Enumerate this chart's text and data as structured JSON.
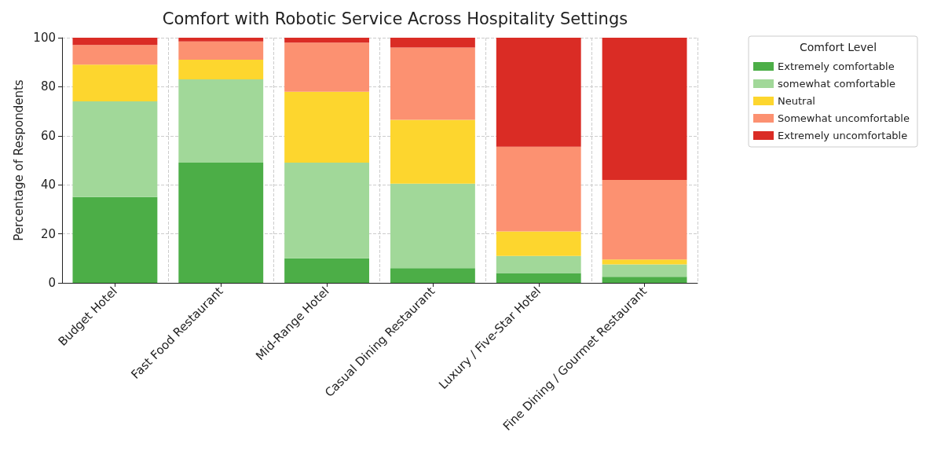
{
  "chart_data": {
    "type": "bar",
    "title": "Comfort with Robotic Service Across Hospitality Settings",
    "ylabel": "Percentage of Respondents",
    "legend_title": "Comfort Level",
    "categories": [
      "Budget Hotel",
      "Fast Food Restaurant",
      "Mid-Range Hotel",
      "Casual Dining Restaurant",
      "Luxury / Five-Star Hotel",
      "Fine Dining / Gourmet Restaurant"
    ],
    "series": [
      {
        "name": "Extremely comfortable",
        "color": "#4cae47",
        "values": [
          35,
          49,
          10,
          6,
          4,
          2.5
        ]
      },
      {
        "name": "somewhat comfortable",
        "color": "#a1d899",
        "values": [
          39,
          34,
          39,
          34.5,
          7,
          5
        ]
      },
      {
        "name": "Neutral",
        "color": "#fdd62e",
        "values": [
          15,
          8,
          29,
          26,
          10,
          2
        ]
      },
      {
        "name": "Somewhat uncomfortable",
        "color": "#fc9171",
        "values": [
          8,
          7.5,
          20,
          29.5,
          34.5,
          32.5
        ]
      },
      {
        "name": "Extremely uncomfortable",
        "color": "#da2c25",
        "values": [
          3,
          1.5,
          2,
          4,
          44.5,
          58
        ]
      }
    ],
    "stacked": true,
    "ylim": [
      0,
      100
    ],
    "yticks": [
      0,
      20,
      40,
      60,
      80,
      100
    ],
    "grid": true,
    "legend": "top right"
  }
}
